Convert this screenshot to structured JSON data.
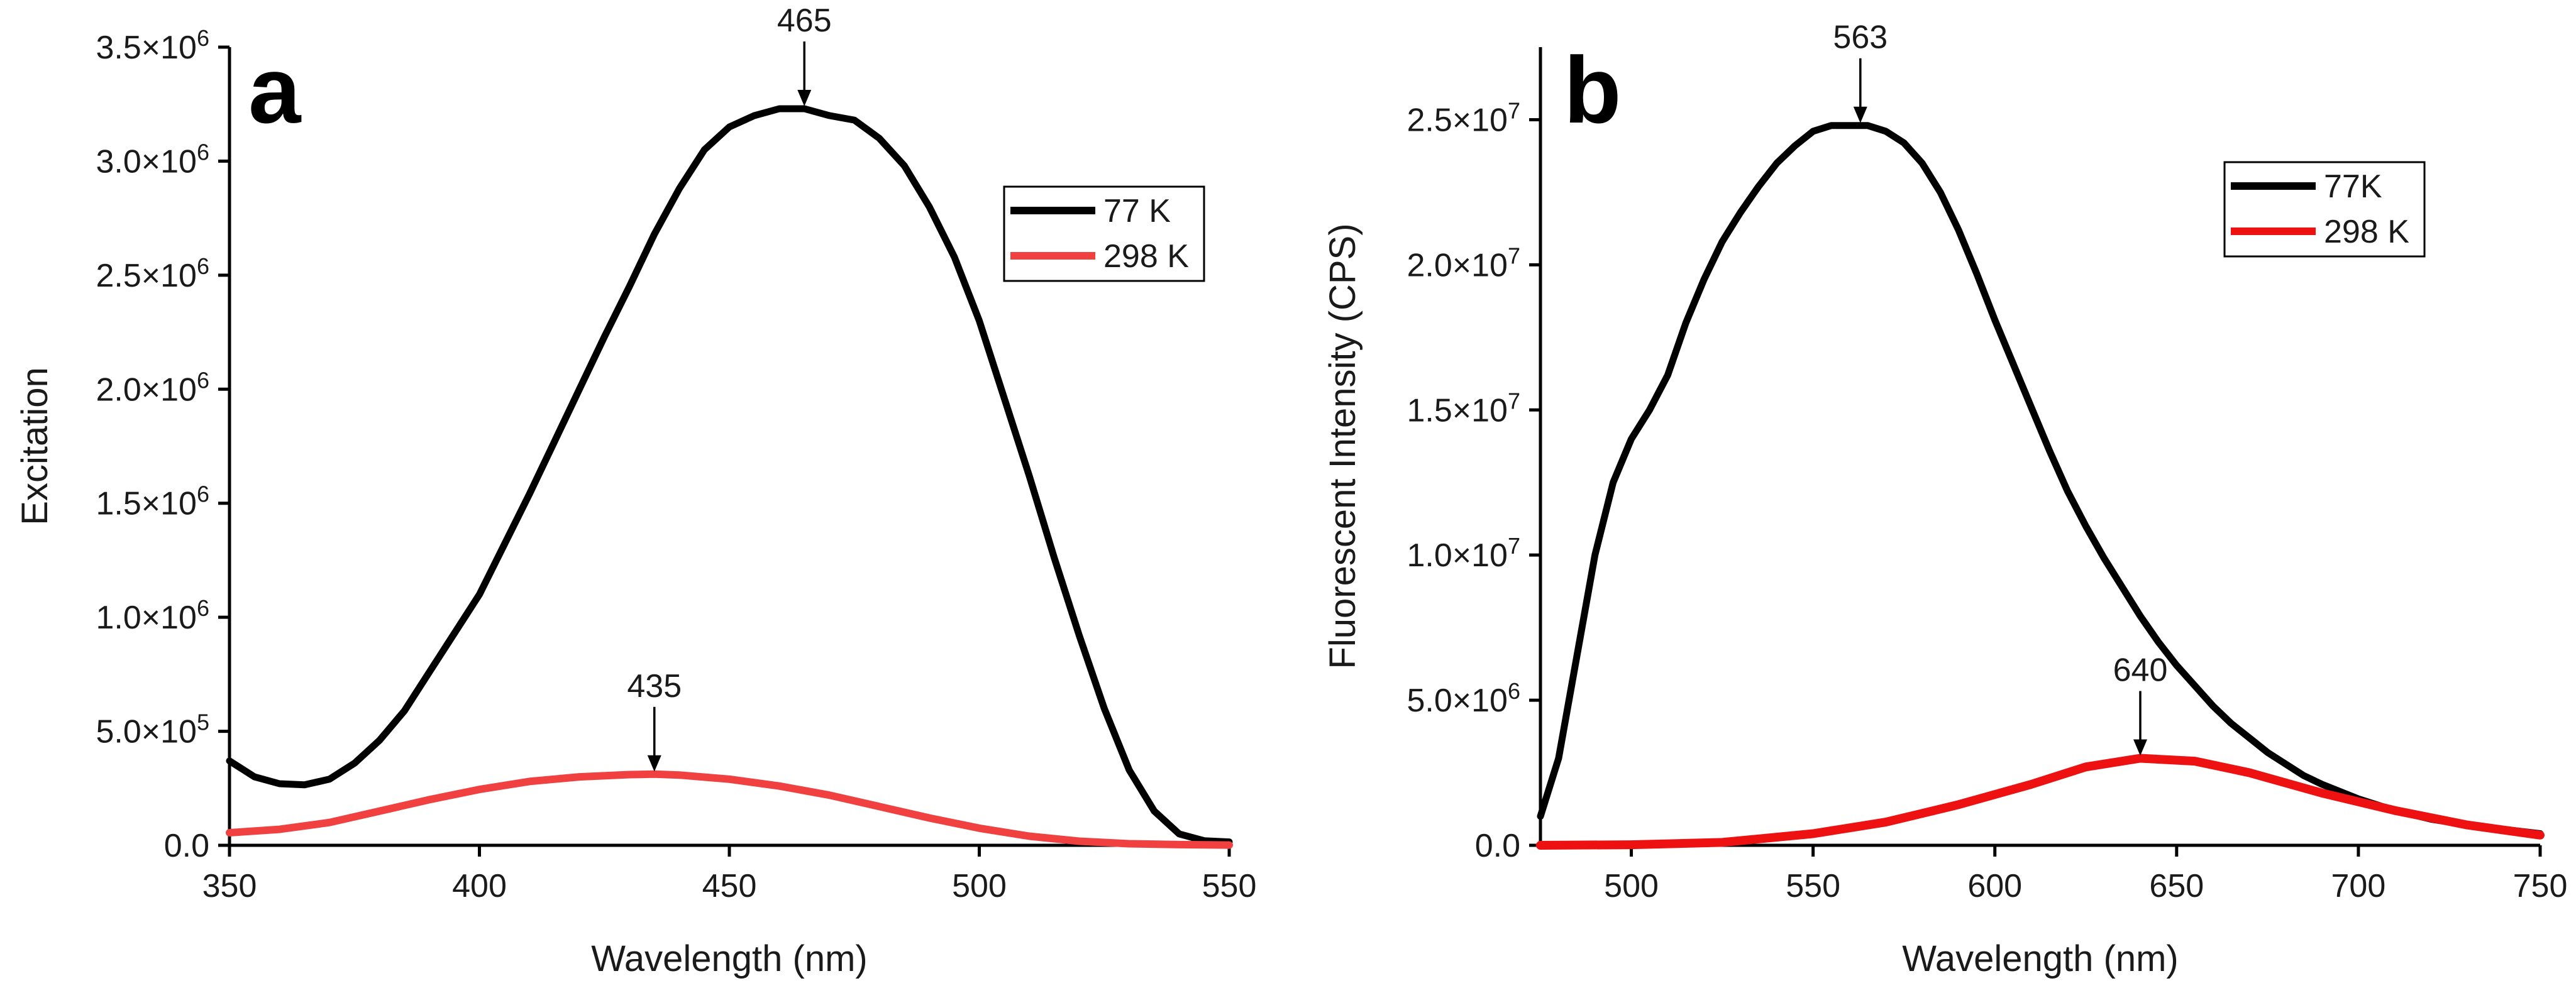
{
  "chart_data": [
    {
      "type": "line",
      "panel": "a",
      "xlabel": "Wavelength (nm)",
      "ylabel": "Excitation",
      "xlim": [
        350,
        550
      ],
      "ylim": [
        0,
        3500000
      ],
      "xticks": [
        350,
        400,
        450,
        500,
        550
      ],
      "xtick_labels": [
        "350",
        "400",
        "450",
        "500",
        "550"
      ],
      "yticks": [
        0,
        500000,
        1000000,
        1500000,
        2000000,
        2500000,
        3000000,
        3500000
      ],
      "ytick_labels": [
        {
          "mantissa": "0.0",
          "exponent": ""
        },
        {
          "mantissa": "5.0×10",
          "exponent": "5"
        },
        {
          "mantissa": "1.0×10",
          "exponent": "6"
        },
        {
          "mantissa": "1.5×10",
          "exponent": "6"
        },
        {
          "mantissa": "2.0×10",
          "exponent": "6"
        },
        {
          "mantissa": "2.5×10",
          "exponent": "6"
        },
        {
          "mantissa": "3.0×10",
          "exponent": "6"
        },
        {
          "mantissa": "3.5×10",
          "exponent": "6"
        }
      ],
      "legend": "top-right",
      "series": [
        {
          "name": "77 K",
          "color": "#000000",
          "x": [
            350,
            355,
            360,
            365,
            370,
            375,
            380,
            385,
            390,
            395,
            400,
            405,
            410,
            415,
            420,
            425,
            430,
            435,
            440,
            445,
            450,
            455,
            460,
            465,
            470,
            475,
            480,
            485,
            490,
            495,
            500,
            505,
            510,
            515,
            520,
            525,
            530,
            535,
            540,
            545,
            550
          ],
          "values": [
            370000,
            300000,
            270000,
            265000,
            290000,
            360000,
            460000,
            590000,
            760000,
            930000,
            1100000,
            1320000,
            1540000,
            1770000,
            2000000,
            2230000,
            2450000,
            2680000,
            2880000,
            3050000,
            3150000,
            3200000,
            3230000,
            3230000,
            3200000,
            3180000,
            3100000,
            2980000,
            2800000,
            2580000,
            2300000,
            1960000,
            1620000,
            1260000,
            920000,
            600000,
            330000,
            150000,
            50000,
            20000,
            15000
          ]
        },
        {
          "name": "298 K",
          "color": "#f04040",
          "x": [
            350,
            360,
            370,
            380,
            390,
            400,
            410,
            420,
            430,
            435,
            440,
            450,
            460,
            470,
            480,
            490,
            500,
            510,
            520,
            530,
            540,
            550
          ],
          "values": [
            55000,
            70000,
            100000,
            150000,
            200000,
            245000,
            280000,
            300000,
            310000,
            312000,
            308000,
            290000,
            260000,
            220000,
            170000,
            120000,
            75000,
            40000,
            18000,
            7000,
            3000,
            1000
          ]
        }
      ],
      "annotations": [
        {
          "text": "465",
          "x": 465,
          "y": 3230000
        },
        {
          "text": "435",
          "x": 435,
          "y": 312000
        }
      ]
    },
    {
      "type": "line",
      "panel": "b",
      "xlabel": "Wavelength (nm)",
      "ylabel": "Fluorescent Intensity (CPS)",
      "xlim": [
        475,
        750
      ],
      "ylim": [
        0,
        27500000
      ],
      "xticks": [
        500,
        550,
        600,
        650,
        700,
        750
      ],
      "xtick_labels": [
        "500",
        "550",
        "600",
        "650",
        "700",
        "750"
      ],
      "yticks": [
        0,
        5000000,
        10000000,
        15000000,
        20000000,
        25000000
      ],
      "ytick_labels": [
        {
          "mantissa": "0.0",
          "exponent": ""
        },
        {
          "mantissa": "5.0×10",
          "exponent": "6"
        },
        {
          "mantissa": "1.0×10",
          "exponent": "7"
        },
        {
          "mantissa": "1.5×10",
          "exponent": "7"
        },
        {
          "mantissa": "2.0×10",
          "exponent": "7"
        },
        {
          "mantissa": "2.5×10",
          "exponent": "7"
        }
      ],
      "legend": "top-right",
      "series": [
        {
          "name": "77K",
          "color": "#000000",
          "x": [
            475,
            480,
            485,
            490,
            495,
            500,
            505,
            510,
            515,
            520,
            525,
            530,
            535,
            540,
            545,
            550,
            555,
            560,
            565,
            570,
            575,
            580,
            585,
            590,
            595,
            600,
            605,
            610,
            615,
            620,
            625,
            630,
            635,
            640,
            645,
            650,
            655,
            660,
            665,
            670,
            675,
            680,
            685,
            690,
            700,
            710,
            720,
            730,
            740,
            750
          ],
          "values": [
            1000000,
            3000000,
            6500000,
            10000000,
            12500000,
            14000000,
            15000000,
            16200000,
            18000000,
            19500000,
            20800000,
            21800000,
            22700000,
            23500000,
            24100000,
            24600000,
            24800000,
            24800000,
            24800000,
            24600000,
            24200000,
            23500000,
            22500000,
            21200000,
            19700000,
            18100000,
            16600000,
            15100000,
            13600000,
            12200000,
            11000000,
            9900000,
            8900000,
            7900000,
            7000000,
            6200000,
            5500000,
            4800000,
            4200000,
            3700000,
            3200000,
            2800000,
            2400000,
            2100000,
            1600000,
            1200000,
            900000,
            700000,
            550000,
            400000
          ]
        },
        {
          "name": "298 K",
          "color": "#ee1111",
          "x": [
            475,
            500,
            525,
            550,
            570,
            590,
            610,
            625,
            640,
            655,
            670,
            690,
            710,
            730,
            750
          ],
          "values": [
            0,
            20000,
            100000,
            400000,
            800000,
            1400000,
            2100000,
            2700000,
            3000000,
            2900000,
            2500000,
            1800000,
            1200000,
            700000,
            350000
          ]
        }
      ],
      "annotations": [
        {
          "text": "563",
          "x": 563,
          "y": 24800000
        },
        {
          "text": "640",
          "x": 640,
          "y": 3000000
        }
      ]
    }
  ]
}
